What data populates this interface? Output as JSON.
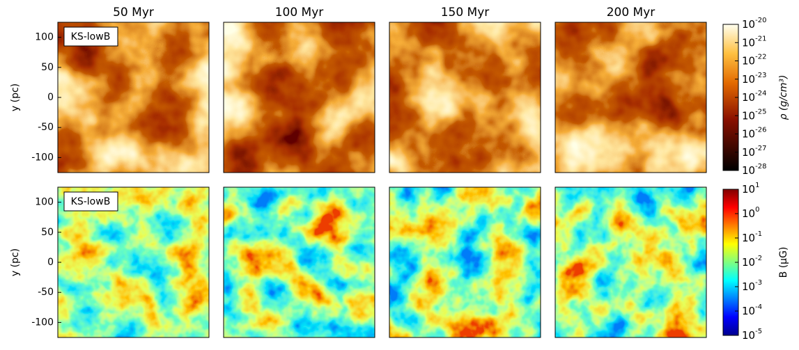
{
  "columns": [
    "50 Myr",
    "100 Myr",
    "150 Myr",
    "200 Myr"
  ],
  "rows": [
    {
      "ylabel": "y (pc)",
      "annotation": "KS-lowB"
    },
    {
      "ylabel": "y (pc)",
      "annotation": "KS-lowB"
    }
  ],
  "ylim": [
    -125,
    125
  ],
  "yticks": [
    100,
    50,
    0,
    -50,
    -100
  ],
  "colorbars": [
    {
      "label": "ρ (g/cm³)",
      "tick_base": "10",
      "tick_exponents": [
        -20,
        -21,
        -22,
        -23,
        -24,
        -25,
        -26,
        -27,
        -28
      ]
    },
    {
      "label": "B (μG)",
      "tick_base": "10",
      "tick_exponents": [
        1,
        0,
        -1,
        -2,
        -3,
        -4,
        -5
      ]
    }
  ]
}
